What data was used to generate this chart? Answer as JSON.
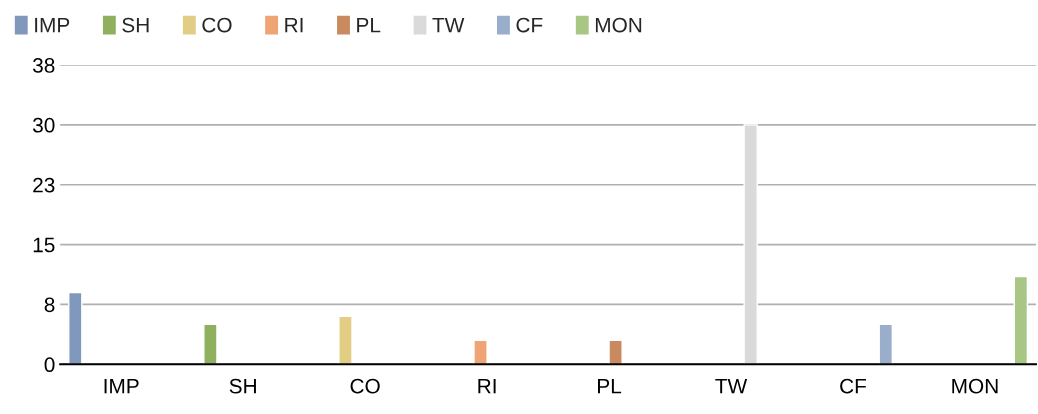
{
  "chart_data": {
    "type": "bar",
    "categories": [
      "IMP",
      "SH",
      "CO",
      "RI",
      "PL",
      "TW",
      "CF",
      "MON"
    ],
    "series": [
      {
        "name": "IMP",
        "color": "#8098bc",
        "values": [
          9,
          null,
          null,
          null,
          null,
          null,
          null,
          null
        ]
      },
      {
        "name": "SH",
        "color": "#8fb05f",
        "values": [
          null,
          5,
          null,
          null,
          null,
          null,
          null,
          null
        ]
      },
      {
        "name": "CO",
        "color": "#e2cd84",
        "values": [
          null,
          null,
          6,
          null,
          null,
          null,
          null,
          null
        ]
      },
      {
        "name": "RI",
        "color": "#eea474",
        "values": [
          null,
          null,
          null,
          3,
          null,
          null,
          null,
          null
        ]
      },
      {
        "name": "PL",
        "color": "#c88a5e",
        "values": [
          null,
          null,
          null,
          null,
          3,
          null,
          null,
          null
        ]
      },
      {
        "name": "TW",
        "color": "#dadada",
        "values": [
          null,
          null,
          null,
          null,
          null,
          30,
          null,
          null
        ]
      },
      {
        "name": "CF",
        "color": "#98aecb",
        "values": [
          null,
          null,
          null,
          null,
          null,
          null,
          5,
          null
        ]
      },
      {
        "name": "MON",
        "color": "#a9c784",
        "values": [
          null,
          null,
          null,
          null,
          null,
          null,
          null,
          11
        ]
      }
    ],
    "ylim": [
      0,
      37.5
    ],
    "yticks": [
      0,
      {
        "value": 7.5,
        "label": "8"
      },
      15,
      {
        "value": 22.5,
        "label": "23"
      },
      30,
      {
        "value": 37.5,
        "label": "38"
      }
    ],
    "grid": "y",
    "legend": "top left"
  }
}
